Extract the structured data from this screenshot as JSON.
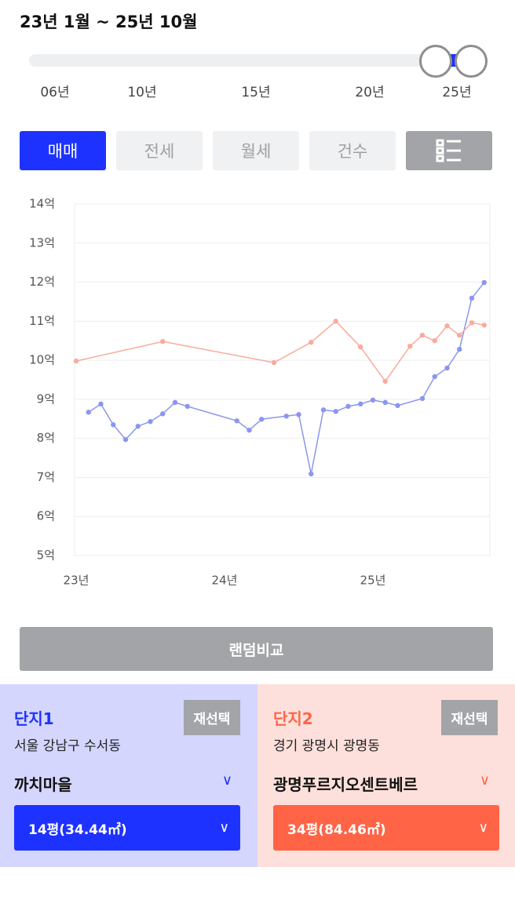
{
  "header": {
    "period": "23년 1월 ~ 25년 10월"
  },
  "slider": {
    "labels": [
      "06년",
      "10년",
      "15년",
      "20년",
      "25년"
    ]
  },
  "tabs": [
    "매매",
    "전세",
    "월세",
    "건수"
  ],
  "chart_data": {
    "type": "line",
    "xlim": [
      0,
      33.5
    ],
    "xticks": [
      {
        "value": 0,
        "label": "23년"
      },
      {
        "value": 12,
        "label": "24년"
      },
      {
        "value": 24,
        "label": "25년"
      }
    ],
    "ylim": [
      5,
      14
    ],
    "yticks": [
      {
        "value": 5,
        "label": "5억"
      },
      {
        "value": 6,
        "label": "6억"
      },
      {
        "value": 7,
        "label": "7억"
      },
      {
        "value": 8,
        "label": "8억"
      },
      {
        "value": 9,
        "label": "9억"
      },
      {
        "value": 10,
        "label": "10억"
      },
      {
        "value": 11,
        "label": "11억"
      },
      {
        "value": 12,
        "label": "12억"
      },
      {
        "value": 13,
        "label": "13억"
      },
      {
        "value": 14,
        "label": "14억"
      }
    ],
    "grid": true,
    "series": [
      {
        "color": "#8b96f0",
        "x": [
          1,
          2,
          3,
          4,
          5,
          6,
          7,
          8,
          9,
          13,
          14,
          15,
          17,
          18,
          19,
          20,
          21,
          22,
          23,
          24,
          25,
          26,
          28,
          29,
          30,
          31,
          32,
          33
        ],
        "values": [
          8.67,
          8.88,
          8.35,
          7.97,
          8.31,
          8.43,
          8.63,
          8.92,
          8.82,
          8.45,
          8.21,
          8.49,
          8.57,
          8.61,
          7.09,
          8.73,
          8.69,
          8.82,
          8.88,
          8.98,
          8.92,
          8.84,
          9.02,
          9.58,
          9.8,
          10.28,
          11.59,
          11.99
        ]
      },
      {
        "color": "#f9ab9c",
        "x": [
          0,
          7,
          16,
          19,
          21,
          23,
          25,
          27,
          28,
          29,
          30,
          31,
          32,
          33
        ],
        "values": [
          9.98,
          10.48,
          9.94,
          10.46,
          11.0,
          10.34,
          9.46,
          10.36,
          10.64,
          10.5,
          10.88,
          10.64,
          10.96,
          10.9
        ]
      }
    ]
  },
  "compare_button": "랜덤비교",
  "complexes": [
    {
      "title": "단지1",
      "reselect": "재선택",
      "address": "서울 강남구 수서동",
      "name": "까치마을",
      "size": "14평(34.44㎡)"
    },
    {
      "title": "단지2",
      "reselect": "재선택",
      "address": "경기 광명시 광명동",
      "name": "광명푸르지오센트베르",
      "size": "34평(84.46㎡)"
    }
  ]
}
